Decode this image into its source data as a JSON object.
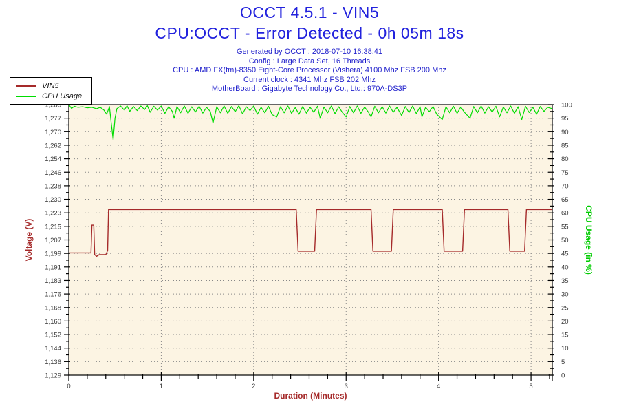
{
  "header": {
    "title": "OCCT 4.5.1 - VIN5",
    "subtitle": "CPU:OCCT - Error Detected - 0h 05m 18s",
    "info_lines": [
      "Generated by OCCT : 2018-07-10 16:38:41",
      "Config : Large Data Set, 16 Threads",
      "CPU : AMD FX(tm)-8350 Eight-Core Processor (Vishera) 4100 Mhz FSB 200 Mhz",
      "Current clock : 4341 Mhz FSB 202 Mhz",
      "MotherBoard : Gigabyte Technology Co., Ltd.: 970A-DS3P"
    ]
  },
  "legend": {
    "items": [
      {
        "label": "VIN5",
        "color": "#A52A2A"
      },
      {
        "label": "CPU Usage",
        "color": "#00DC00"
      }
    ]
  },
  "colors": {
    "title_blue": "#2222DD",
    "info_blue": "#2222CC",
    "vin5_red": "#A52A2A",
    "cpu_green": "#00DC00",
    "axis_label_red": "#A52A2A",
    "axis_label_green": "#00CC00",
    "plot_bg": "#FCF4E3",
    "grid_dot": "#888888",
    "axis_black": "#000000",
    "tick_text": "#3A3A3A"
  },
  "chart_data": {
    "type": "line",
    "title": "OCCT 4.5.1 - VIN5",
    "subtitle": "CPU:OCCT - Error Detected - 0h 05m 18s",
    "x": {
      "label": "Duration (Minutes)",
      "min": 0,
      "max": 5.23,
      "major_ticks": [
        "0",
        "1",
        "2",
        "3",
        "4",
        "5"
      ],
      "major_tick_values": [
        0,
        1,
        2,
        3,
        4,
        5
      ],
      "minor_step": 0.2
    },
    "y_left": {
      "label": "Voltage (V)",
      "min": 1.129,
      "max": 1.285,
      "tick_labels": [
        "1,285",
        "1,277",
        "1,270",
        "1,262",
        "1,254",
        "1,246",
        "1,238",
        "1,230",
        "1,223",
        "1,215",
        "1,207",
        "1,199",
        "1,191",
        "1,183",
        "1,176",
        "1,168",
        "1,160",
        "1,152",
        "1,144",
        "1,136",
        "1,129"
      ]
    },
    "y_right": {
      "label": "CPU Usage (in %)",
      "min": 0,
      "max": 100,
      "tick_labels": [
        "100",
        "95",
        "90",
        "85",
        "80",
        "75",
        "70",
        "65",
        "60",
        "55",
        "50",
        "45",
        "40",
        "35",
        "30",
        "25",
        "20",
        "15",
        "10",
        "5",
        "0"
      ]
    },
    "grid": {
      "horizontal": "dotted line at every labeled tick",
      "vertical": "dotted line at every minute"
    },
    "legend_position": "top-left",
    "series": [
      {
        "name": "VIN5",
        "axis": "left",
        "color": "#A52A2A",
        "points": [
          [
            0,
            1.1995
          ],
          [
            0.24,
            1.1995
          ],
          [
            0.25,
            1.2155
          ],
          [
            0.27,
            1.2155
          ],
          [
            0.28,
            1.1985
          ],
          [
            0.3,
            1.1975
          ],
          [
            0.33,
            1.1985
          ],
          [
            0.4,
            1.1985
          ],
          [
            0.41,
            1.1995
          ],
          [
            0.42,
            1.201
          ],
          [
            0.43,
            1.2245
          ],
          [
            2.46,
            1.2245
          ],
          [
            2.48,
            1.2005
          ],
          [
            2.66,
            1.2005
          ],
          [
            2.68,
            1.2245
          ],
          [
            3.27,
            1.2245
          ],
          [
            3.29,
            1.2005
          ],
          [
            3.49,
            1.2005
          ],
          [
            3.51,
            1.2245
          ],
          [
            4.04,
            1.2245
          ],
          [
            4.06,
            1.2005
          ],
          [
            4.26,
            1.2005
          ],
          [
            4.28,
            1.2245
          ],
          [
            4.75,
            1.2245
          ],
          [
            4.77,
            1.2005
          ],
          [
            4.93,
            1.2005
          ],
          [
            4.95,
            1.2245
          ],
          [
            5.23,
            1.2245
          ]
        ]
      },
      {
        "name": "CPU Usage",
        "axis": "right",
        "color": "#00DC00",
        "points": [
          [
            0,
            100
          ],
          [
            0.03,
            98.6
          ],
          [
            0.06,
            99.4
          ],
          [
            0.1,
            99.0
          ],
          [
            0.15,
            99.2
          ],
          [
            0.2,
            98.8
          ],
          [
            0.25,
            99.0
          ],
          [
            0.3,
            98.5
          ],
          [
            0.34,
            99.0
          ],
          [
            0.38,
            98.0
          ],
          [
            0.41,
            96.5
          ],
          [
            0.44,
            99.3
          ],
          [
            0.46,
            93.0
          ],
          [
            0.48,
            87.0
          ],
          [
            0.5,
            95.0
          ],
          [
            0.52,
            98.5
          ],
          [
            0.56,
            99.5
          ],
          [
            0.6,
            98.0
          ],
          [
            0.63,
            99.6
          ],
          [
            0.66,
            97.5
          ],
          [
            0.7,
            99.3
          ],
          [
            0.74,
            97.8
          ],
          [
            0.78,
            99.5
          ],
          [
            0.82,
            98.2
          ],
          [
            0.85,
            99.6
          ],
          [
            0.88,
            97.2
          ],
          [
            0.92,
            99.4
          ],
          [
            0.96,
            98.0
          ],
          [
            1.0,
            99.5
          ],
          [
            1.04,
            96.8
          ],
          [
            1.08,
            99.2
          ],
          [
            1.12,
            97.5
          ],
          [
            1.14,
            95.0
          ],
          [
            1.17,
            99.3
          ],
          [
            1.21,
            97.0
          ],
          [
            1.25,
            99.5
          ],
          [
            1.29,
            96.8
          ],
          [
            1.33,
            99.2
          ],
          [
            1.37,
            97.3
          ],
          [
            1.41,
            99.4
          ],
          [
            1.45,
            96.9
          ],
          [
            1.49,
            99.0
          ],
          [
            1.53,
            97.5
          ],
          [
            1.56,
            93.2
          ],
          [
            1.6,
            99.2
          ],
          [
            1.64,
            97.0
          ],
          [
            1.68,
            99.5
          ],
          [
            1.72,
            96.8
          ],
          [
            1.76,
            99.3
          ],
          [
            1.8,
            97.4
          ],
          [
            1.84,
            99.6
          ],
          [
            1.88,
            96.6
          ],
          [
            1.92,
            99.2
          ],
          [
            1.96,
            97.8
          ],
          [
            2.0,
            99.5
          ],
          [
            2.04,
            96.5
          ],
          [
            2.08,
            99.0
          ],
          [
            2.12,
            97.0
          ],
          [
            2.16,
            99.4
          ],
          [
            2.2,
            96.3
          ],
          [
            2.25,
            95.5
          ],
          [
            2.29,
            99.2
          ],
          [
            2.33,
            97.0
          ],
          [
            2.37,
            99.5
          ],
          [
            2.41,
            96.8
          ],
          [
            2.45,
            98.9
          ],
          [
            2.49,
            96.5
          ],
          [
            2.53,
            99.3
          ],
          [
            2.57,
            96.9
          ],
          [
            2.61,
            99.0
          ],
          [
            2.65,
            97.2
          ],
          [
            2.69,
            99.4
          ],
          [
            2.72,
            95.0
          ],
          [
            2.76,
            99.1
          ],
          [
            2.8,
            97.0
          ],
          [
            2.84,
            99.5
          ],
          [
            2.88,
            96.7
          ],
          [
            2.92,
            99.2
          ],
          [
            2.96,
            97.1
          ],
          [
            3.0,
            95.5
          ],
          [
            3.04,
            99.3
          ],
          [
            3.08,
            97.0
          ],
          [
            3.12,
            99.5
          ],
          [
            3.16,
            96.8
          ],
          [
            3.2,
            99.1
          ],
          [
            3.24,
            97.3
          ],
          [
            3.27,
            95.5
          ],
          [
            3.31,
            99.4
          ],
          [
            3.35,
            97.0
          ],
          [
            3.39,
            99.2
          ],
          [
            3.43,
            96.9
          ],
          [
            3.47,
            99.5
          ],
          [
            3.51,
            97.2
          ],
          [
            3.55,
            99.0
          ],
          [
            3.6,
            96.0
          ],
          [
            3.64,
            99.3
          ],
          [
            3.68,
            97.1
          ],
          [
            3.72,
            99.5
          ],
          [
            3.76,
            96.7
          ],
          [
            3.8,
            99.2
          ],
          [
            3.82,
            95.5
          ],
          [
            3.86,
            99.0
          ],
          [
            3.9,
            97.4
          ],
          [
            3.94,
            99.3
          ],
          [
            3.98,
            96.5
          ],
          [
            4.04,
            94.5
          ],
          [
            4.08,
            99.2
          ],
          [
            4.12,
            97.0
          ],
          [
            4.16,
            99.4
          ],
          [
            4.2,
            96.8
          ],
          [
            4.24,
            99.1
          ],
          [
            4.28,
            97.2
          ],
          [
            4.34,
            95.0
          ],
          [
            4.38,
            99.3
          ],
          [
            4.42,
            97.0
          ],
          [
            4.46,
            99.5
          ],
          [
            4.5,
            96.9
          ],
          [
            4.54,
            99.2
          ],
          [
            4.58,
            97.3
          ],
          [
            4.62,
            99.4
          ],
          [
            4.66,
            95.5
          ],
          [
            4.7,
            99.1
          ],
          [
            4.74,
            97.0
          ],
          [
            4.78,
            99.5
          ],
          [
            4.82,
            96.8
          ],
          [
            4.86,
            99.2
          ],
          [
            4.9,
            94.5
          ],
          [
            4.94,
            99.4
          ],
          [
            4.98,
            97.1
          ],
          [
            5.02,
            99.0
          ],
          [
            5.06,
            96.5
          ],
          [
            5.1,
            99.3
          ],
          [
            5.14,
            97.5
          ],
          [
            5.18,
            99.0
          ],
          [
            5.23,
            98.5
          ]
        ]
      }
    ]
  }
}
